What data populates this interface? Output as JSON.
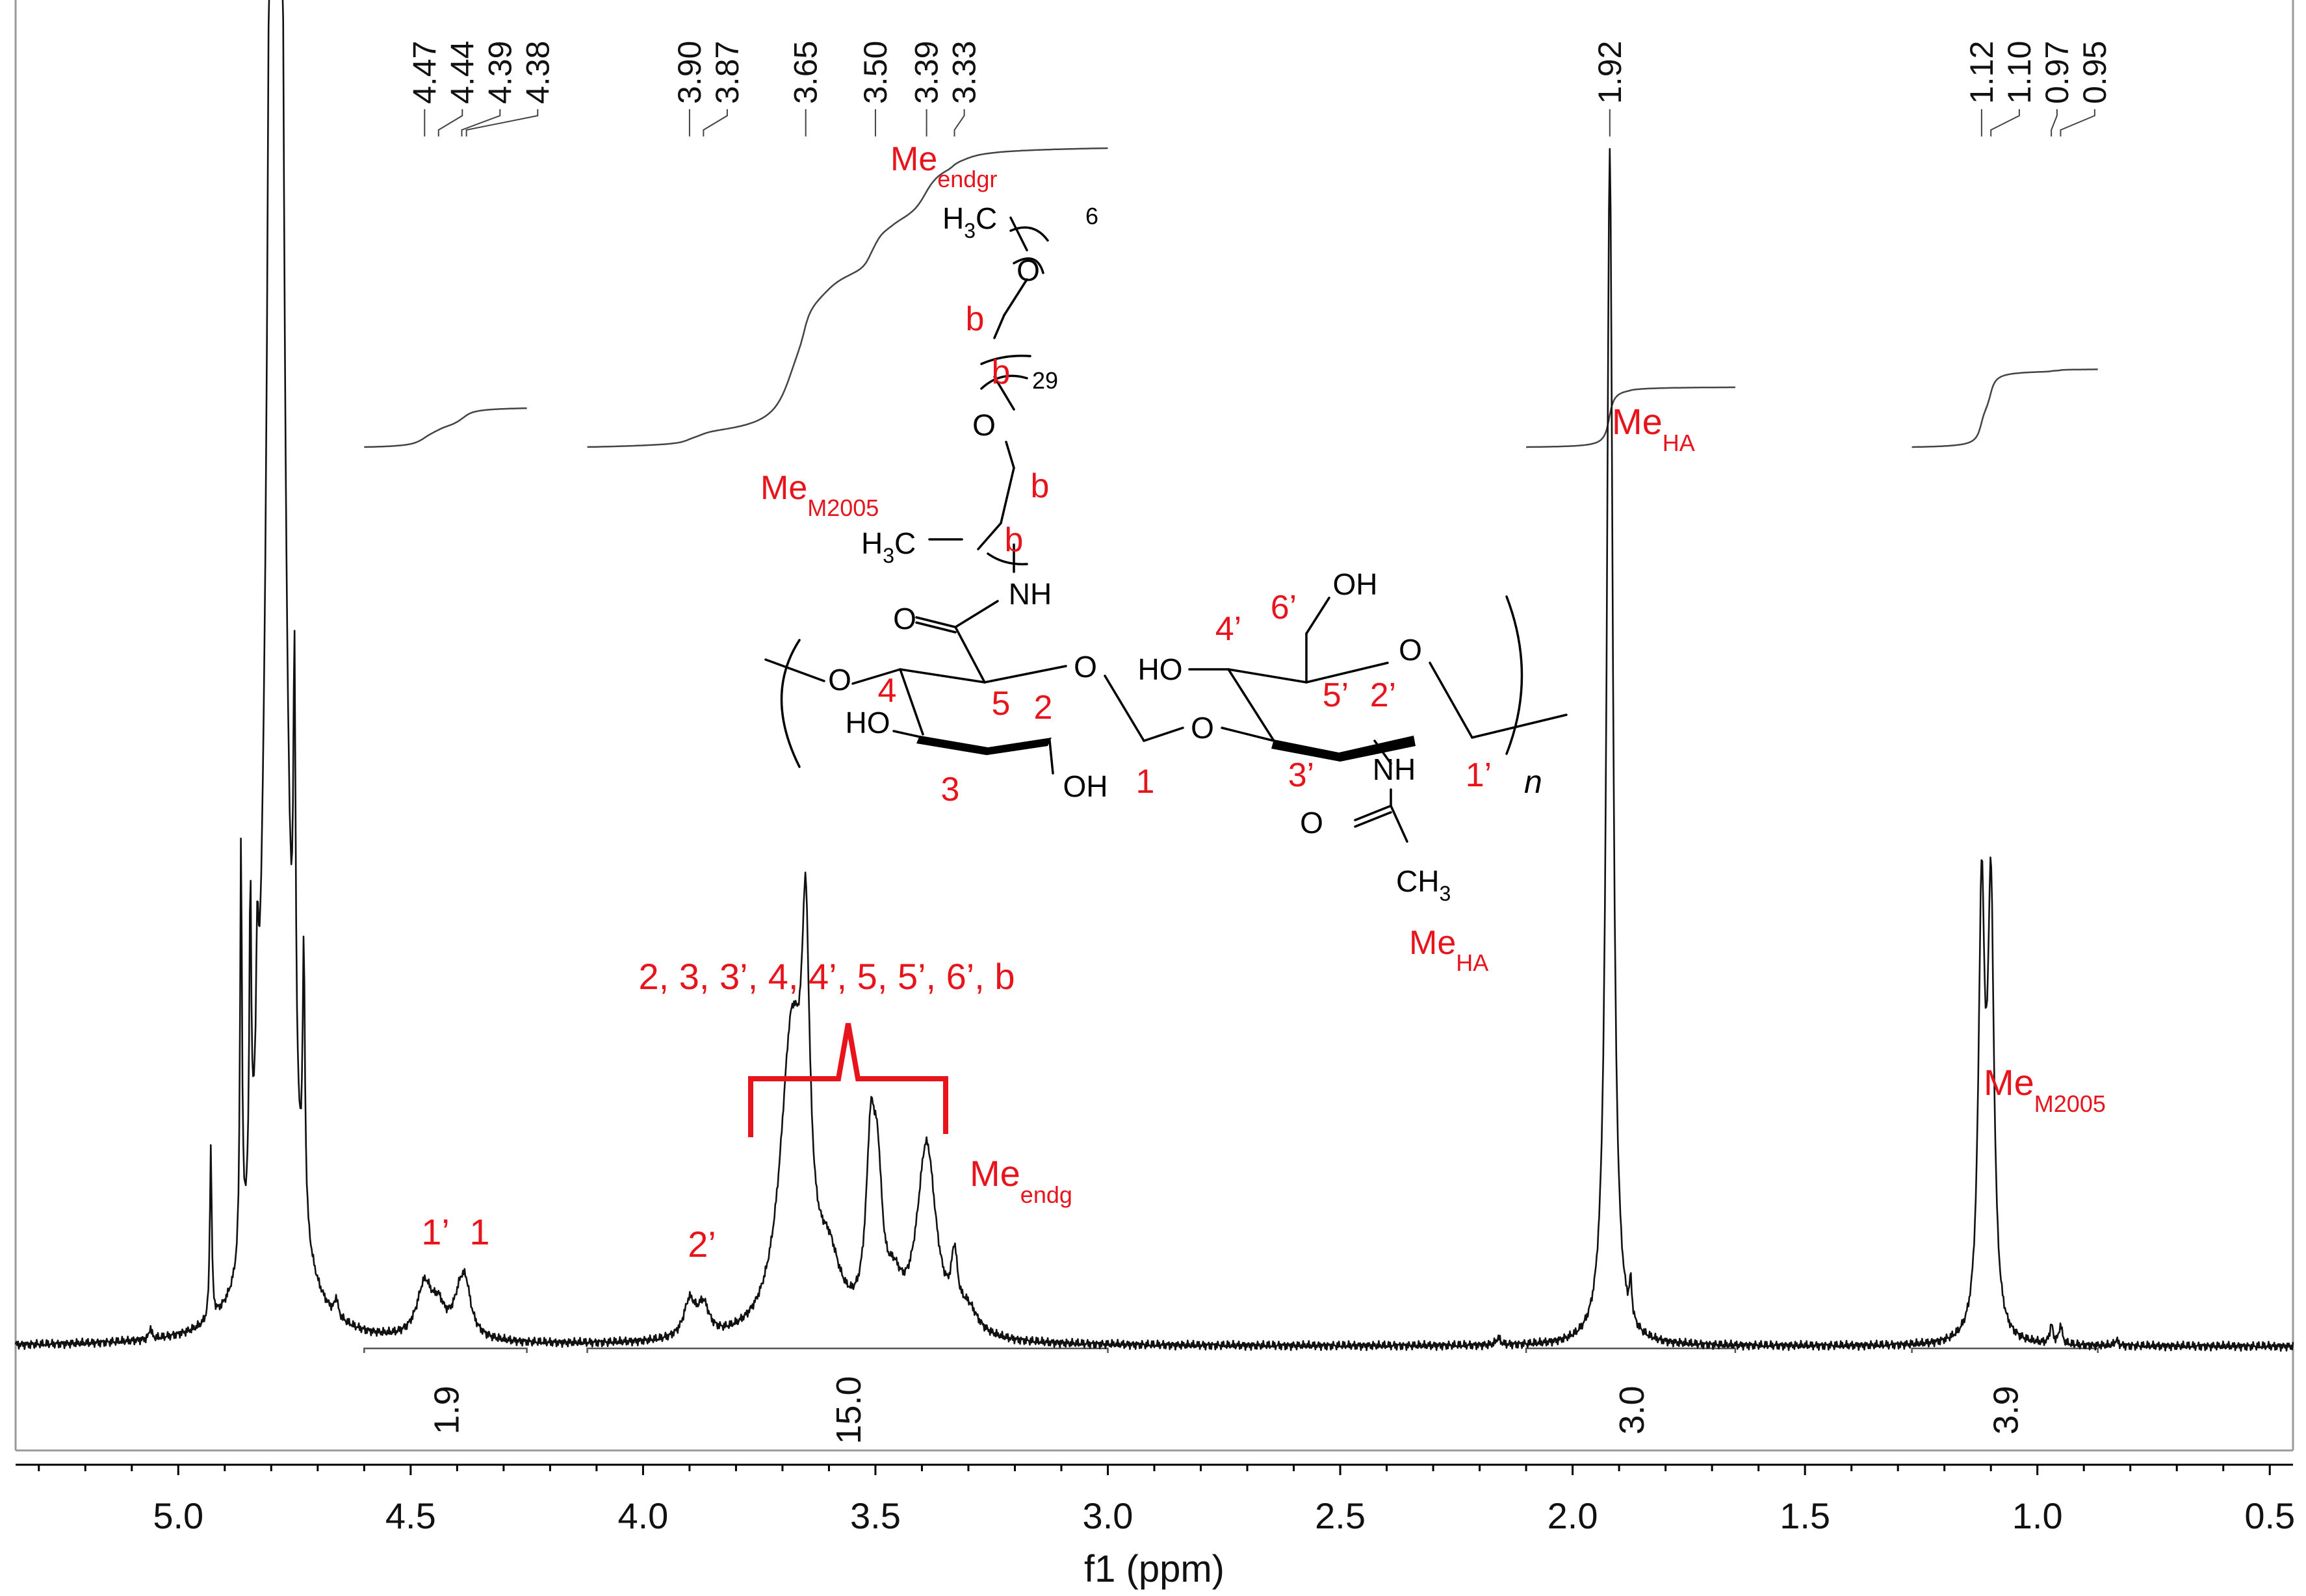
{
  "chart_data": {
    "type": "line",
    "xlabel": "f1 (ppm)",
    "x_reversed": true,
    "xlim": [
      5.35,
      0.45
    ],
    "x_ticks": [
      "5.0",
      "4.5",
      "4.0",
      "3.5",
      "3.0",
      "2.5",
      "2.0",
      "1.5",
      "1.0",
      "0.5"
    ],
    "x_tick_values": [
      5.0,
      4.5,
      4.0,
      3.5,
      3.0,
      2.5,
      2.0,
      1.5,
      1.0,
      0.5
    ],
    "y_axis_shown": false,
    "grid": false,
    "series": [
      {
        "peaks": [
          {
            "ppm": 5.06,
            "height": 0.01,
            "width": 0.003
          },
          {
            "ppm": 4.93,
            "height": 0.145,
            "width": 0.0025
          },
          {
            "ppm": 4.865,
            "height": 0.35,
            "width": 0.0025
          },
          {
            "ppm": 4.845,
            "height": 0.26,
            "width": 0.0025
          },
          {
            "ppm": 4.83,
            "height": 0.12,
            "width": 0.003
          },
          {
            "ppm": 4.79,
            "height": 3.0,
            "width": 0.012
          },
          {
            "ppm": 4.75,
            "height": 0.35,
            "width": 0.003
          },
          {
            "ppm": 4.73,
            "height": 0.22,
            "width": 0.003
          },
          {
            "ppm": 4.66,
            "height": 0.015,
            "width": 0.004
          },
          {
            "ppm": 4.47,
            "height": 0.045,
            "width": 0.02
          },
          {
            "ppm": 4.44,
            "height": 0.02,
            "width": 0.015
          },
          {
            "ppm": 4.39,
            "height": 0.045,
            "width": 0.02
          },
          {
            "ppm": 4.38,
            "height": 0.015,
            "width": 0.01
          },
          {
            "ppm": 3.9,
            "height": 0.03,
            "width": 0.015
          },
          {
            "ppm": 3.87,
            "height": 0.025,
            "width": 0.015
          },
          {
            "ppm": 3.68,
            "height": 0.25,
            "width": 0.03
          },
          {
            "ppm": 3.65,
            "height": 0.25,
            "width": 0.01
          },
          {
            "ppm": 3.6,
            "height": 0.05,
            "width": 0.03
          },
          {
            "ppm": 3.51,
            "height": 0.14,
            "width": 0.012
          },
          {
            "ppm": 3.495,
            "height": 0.1,
            "width": 0.012
          },
          {
            "ppm": 3.46,
            "height": 0.03,
            "width": 0.02
          },
          {
            "ppm": 3.39,
            "height": 0.16,
            "width": 0.025
          },
          {
            "ppm": 3.33,
            "height": 0.05,
            "width": 0.008
          },
          {
            "ppm": 3.3,
            "height": 0.02,
            "width": 0.025
          },
          {
            "ppm": 2.16,
            "height": 0.006,
            "width": 0.005
          },
          {
            "ppm": 1.92,
            "height": 1.0,
            "width": 0.008
          },
          {
            "ppm": 1.875,
            "height": 0.03,
            "width": 0.003
          },
          {
            "ppm": 1.12,
            "height": 0.36,
            "width": 0.008
          },
          {
            "ppm": 1.1,
            "height": 0.36,
            "width": 0.008
          },
          {
            "ppm": 0.97,
            "height": 0.016,
            "width": 0.004
          },
          {
            "ppm": 0.95,
            "height": 0.016,
            "width": 0.004
          },
          {
            "ppm": 0.83,
            "height": 0.005,
            "width": 0.004
          }
        ]
      }
    ],
    "peak_labels": [
      "4.47",
      "4.44",
      "4.39",
      "4.38",
      "3.90",
      "3.87",
      "3.65",
      "3.50",
      "3.39",
      "3.33",
      "1.92",
      "1.12",
      "1.10",
      "0.97",
      "0.95"
    ],
    "peak_label_ppm": [
      4.47,
      4.44,
      4.39,
      4.38,
      3.9,
      3.87,
      3.65,
      3.5,
      3.39,
      3.33,
      1.92,
      1.12,
      1.1,
      0.97,
      0.95
    ],
    "integrals": [
      {
        "from": 4.6,
        "to": 4.25,
        "value": "1.9",
        "level_rise": 0.26
      },
      {
        "from": 4.12,
        "to": 3.0,
        "value": "15.0",
        "level_rise": 2.0
      },
      {
        "from": 2.1,
        "to": 1.65,
        "value": "3.0",
        "level_rise": 0.4
      },
      {
        "from": 1.27,
        "to": 0.87,
        "value": "3.9",
        "level_rise": 0.52
      }
    ],
    "annotations": {
      "peak_assignments": [
        {
          "label": "1’",
          "ppm": 4.47
        },
        {
          "label": "1",
          "ppm": 4.39
        },
        {
          "label": "2’",
          "ppm": 3.88
        },
        {
          "label": "2, 3, 3’, 4, 4’, 5, 5’, 6’, b",
          "ppm": 3.57
        },
        {
          "label": "Me",
          "sub": "endg",
          "ppm": 3.33
        },
        {
          "label": "Me",
          "sub": "HA",
          "ppm": 1.92
        },
        {
          "label": "Me",
          "sub": "M2005",
          "ppm": 1.1
        }
      ],
      "structure": {
        "atoms": [
          "O",
          "HO",
          "OH",
          "O",
          "O",
          "HO",
          "OH",
          "O",
          "NH",
          "O",
          "CH",
          "NH",
          "H",
          "C",
          "O",
          "O",
          "H",
          "C"
        ],
        "numbers": [
          "3",
          "3",
          "3"
        ],
        "positions": [
          "4",
          "5",
          "2",
          "3",
          "1",
          "4’",
          "6’",
          "5’",
          "2’",
          "3’",
          "1’"
        ],
        "chain_labels": [
          "b",
          "b",
          "b",
          "b"
        ],
        "repeat_counts": [
          "29",
          "6"
        ],
        "repeat_unit": "n",
        "methyl_labels": [
          {
            "text": "Me",
            "sub": "endgr"
          },
          {
            "text": "Me",
            "sub": "M2005"
          },
          {
            "text": "Me",
            "sub": "HA"
          }
        ]
      }
    }
  }
}
